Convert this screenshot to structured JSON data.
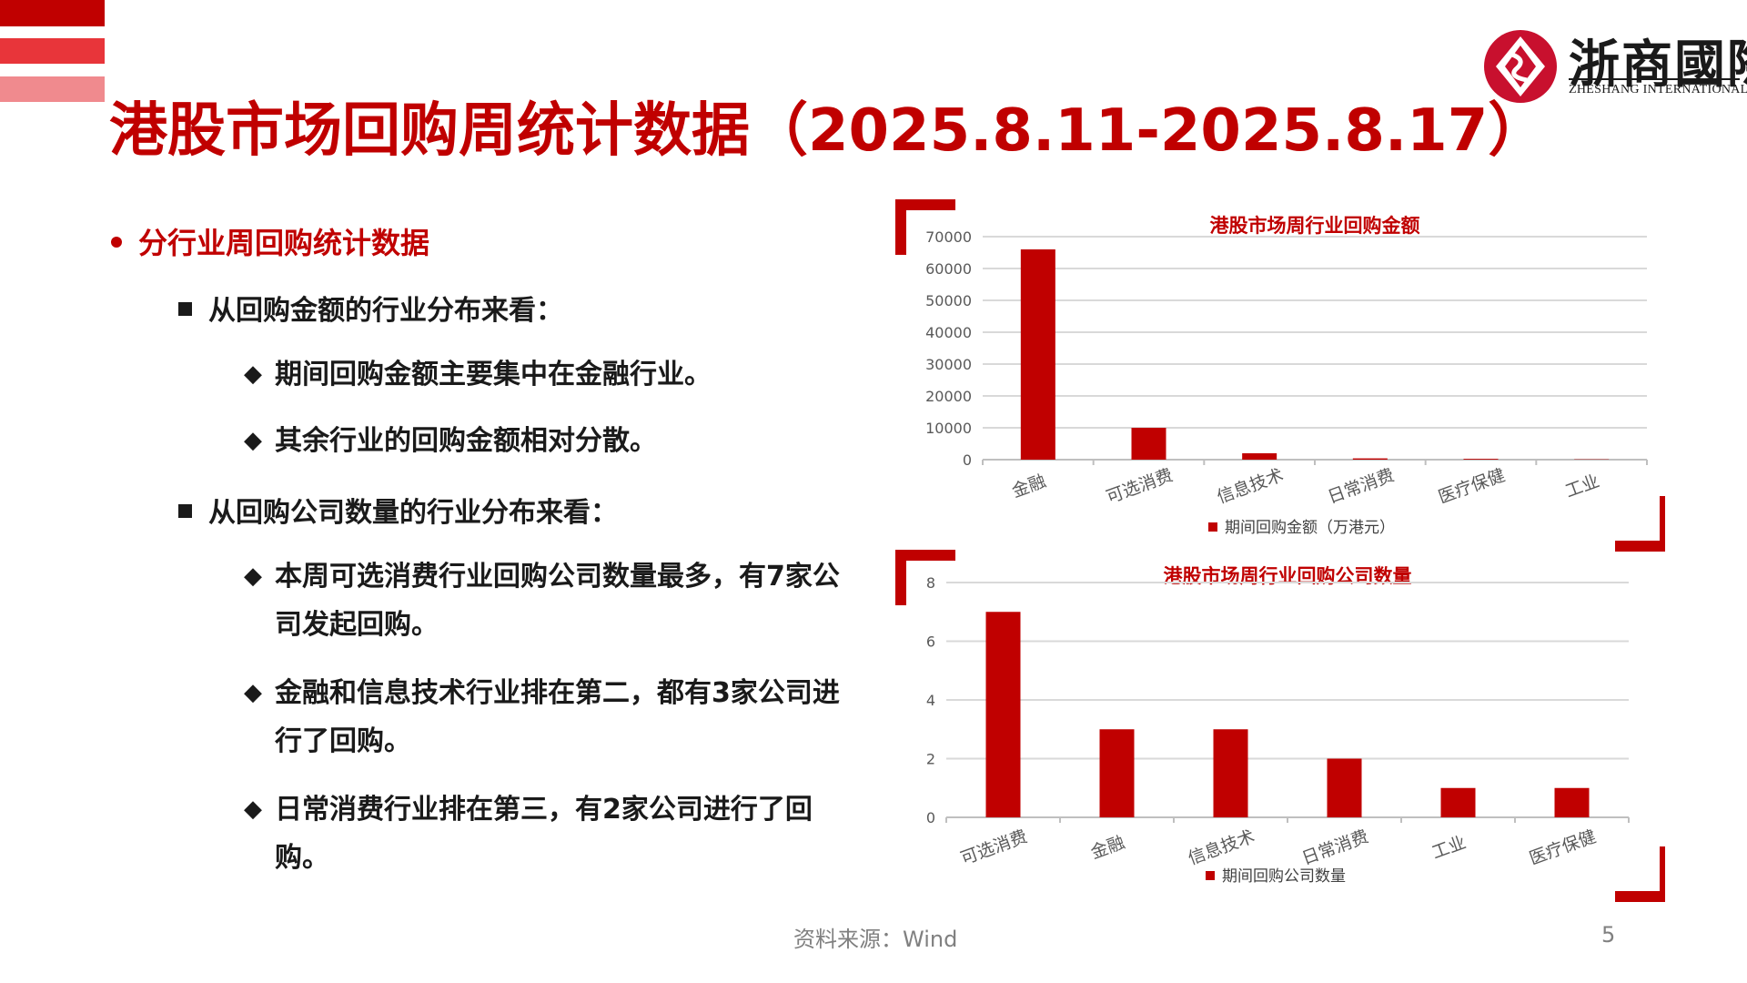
{
  "header": {
    "title": "港股市场回购周统计数据（2025.8.11-2025.8.17）",
    "logo_cn": "浙商國際",
    "logo_en": "ZHESHANG INTERNATIONAL"
  },
  "colors": {
    "accent": "#c00000",
    "accent_mid": "#e8353a",
    "accent_light": "#f08a8e",
    "text": "#1a1a1a",
    "muted": "#808080"
  },
  "content": {
    "heading": "分行业周回购统计数据",
    "sections": [
      {
        "label": "从回购金额的行业分布来看：",
        "points": [
          "期间回购金额主要集中在金融行业。",
          "其余行业的回购金额相对分散。"
        ]
      },
      {
        "label": "从回购公司数量的行业分布来看：",
        "points": [
          "本周可选消费行业回购公司数量最多，有7家公司发起回购。",
          "金融和信息技术行业排在第二，都有3家公司进行了回购。",
          "日常消费行业排在第三，有2家公司进行了回购。"
        ]
      }
    ]
  },
  "chart_data": [
    {
      "type": "bar",
      "title": "港股市场周行业回购金额",
      "categories": [
        "金融",
        "可选消费",
        "信息技术",
        "日常消费",
        "医疗保健",
        "工业"
      ],
      "series": [
        {
          "name": "期间回购金额（万港元）",
          "values": [
            66000,
            10000,
            2000,
            400,
            250,
            100
          ]
        }
      ],
      "ylim": [
        0,
        70000
      ],
      "yticks": [
        0,
        10000,
        20000,
        30000,
        40000,
        50000,
        60000,
        70000
      ],
      "grid": true,
      "legend": "bottom",
      "color": "#c00000"
    },
    {
      "type": "bar",
      "title": "港股市场周行业回购公司数量",
      "categories": [
        "可选消费",
        "金融",
        "信息技术",
        "日常消费",
        "工业",
        "医疗保健"
      ],
      "series": [
        {
          "name": "期间回购公司数量",
          "values": [
            7,
            3,
            3,
            2,
            1,
            1
          ]
        }
      ],
      "ylim": [
        0,
        8
      ],
      "yticks": [
        0,
        2,
        4,
        6,
        8
      ],
      "grid": true,
      "legend": "bottom",
      "color": "#c00000"
    }
  ],
  "footer": {
    "source": "资料来源：Wind",
    "page": "5"
  }
}
